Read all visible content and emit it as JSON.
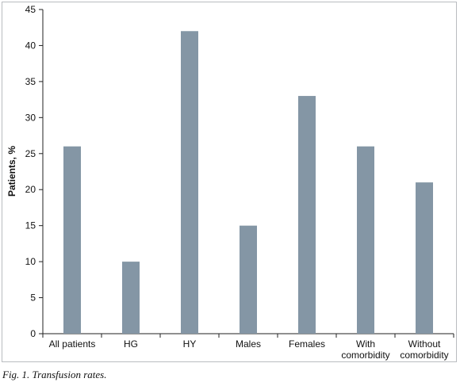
{
  "chart_data": {
    "type": "bar",
    "categories": [
      [
        "All patients"
      ],
      [
        "HG"
      ],
      [
        "HY"
      ],
      [
        "Males"
      ],
      [
        "Females"
      ],
      [
        "With",
        "comorbidity"
      ],
      [
        "Without",
        "comorbidity"
      ]
    ],
    "values": [
      26,
      10,
      42,
      15,
      33,
      26,
      21
    ],
    "ylabel": "Patients, %",
    "ylim": [
      0,
      45
    ],
    "yticks": [
      0,
      5,
      10,
      15,
      20,
      25,
      30,
      35,
      40,
      45
    ],
    "bar_color": "#8496a5",
    "grid": false
  },
  "caption": "Fig. 1. Transfusion rates."
}
